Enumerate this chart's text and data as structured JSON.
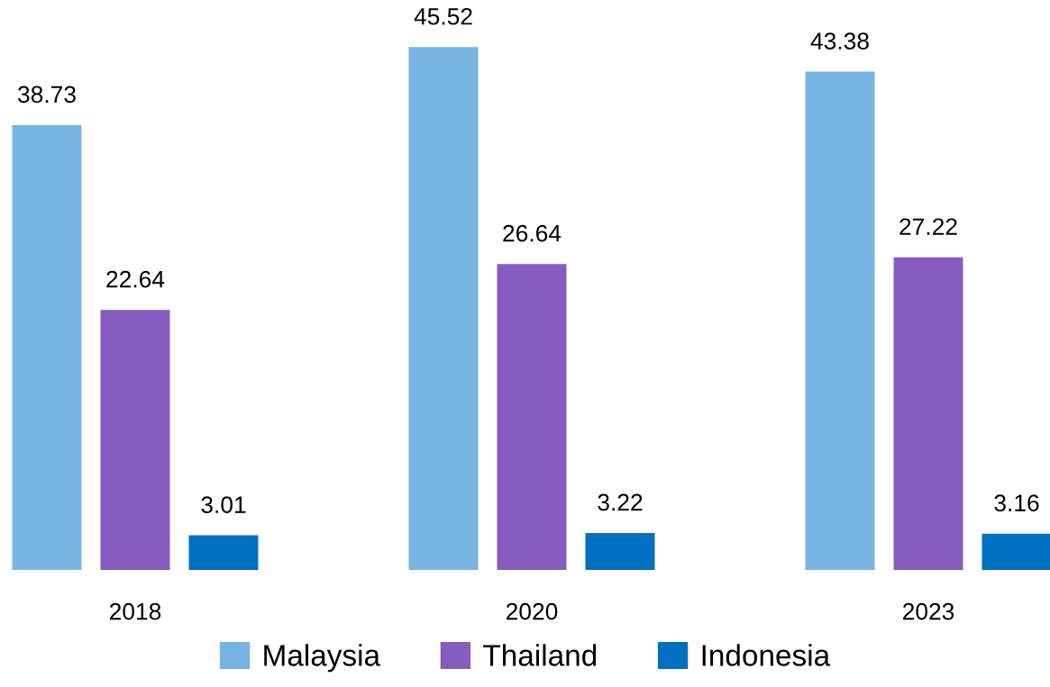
{
  "chart_data": {
    "type": "bar",
    "categories": [
      "2018",
      "2020",
      "2023"
    ],
    "series": [
      {
        "name": "Malaysia",
        "color": "#77b4e2",
        "values": [
          38.73,
          45.52,
          43.38
        ]
      },
      {
        "name": "Thailand",
        "color": "#865cc0",
        "values": [
          22.64,
          26.64,
          27.22
        ]
      },
      {
        "name": "Indonesia",
        "color": "#0070c0",
        "values": [
          3.01,
          3.22,
          3.16
        ]
      }
    ],
    "data_labels": true,
    "tick_labels": "x",
    "grid": false,
    "legend": "bottom"
  }
}
